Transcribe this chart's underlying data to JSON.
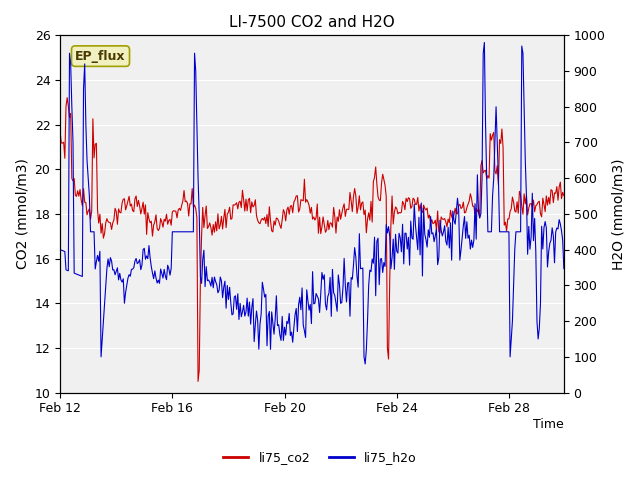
{
  "title": "LI-7500 CO2 and H2O",
  "xlabel": "Time",
  "ylabel_left": "CO2 (mmol/m3)",
  "ylabel_right": "H2O (mmol/m3)",
  "ylim_left": [
    10,
    26
  ],
  "ylim_right": [
    0,
    1000
  ],
  "yticks_left": [
    10,
    12,
    14,
    16,
    18,
    20,
    22,
    24,
    26
  ],
  "yticks_right": [
    0,
    100,
    200,
    300,
    400,
    500,
    600,
    700,
    800,
    900,
    1000
  ],
  "xtick_labels": [
    "Feb 12",
    "Feb 16",
    "Feb 20",
    "Feb 24",
    "Feb 28"
  ],
  "xtick_positions": [
    0,
    96,
    192,
    288,
    384
  ],
  "annotation_text": "EP_flux",
  "annotation_bg": "#f0f0c0",
  "annotation_border": "#a0a000",
  "legend_labels": [
    "li75_co2",
    "li75_h2o"
  ],
  "legend_colors": [
    "#cc0000",
    "#0000cc"
  ],
  "line_color_co2": "#cc0000",
  "line_color_h2o": "#0000cc",
  "bg_color": "#e8e8e8",
  "plot_bg": "#f0f0f0",
  "n_points": 432,
  "seed": 42
}
